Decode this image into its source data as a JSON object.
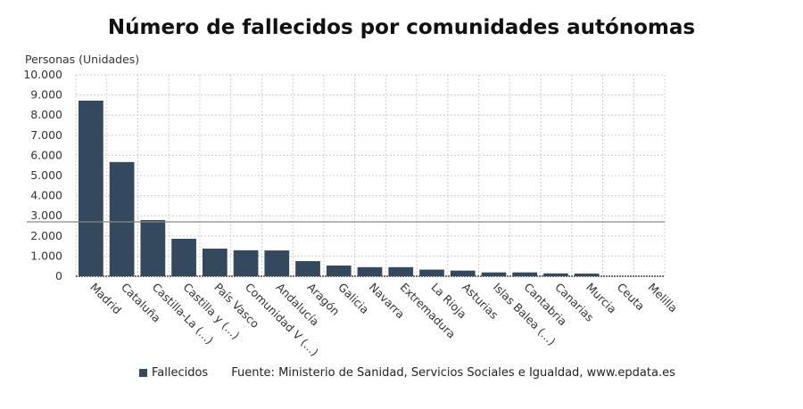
{
  "chart_data": {
    "type": "bar",
    "title": "Número de fallecidos por comunidades autónomas",
    "ylabel": "Personas (Unidades)",
    "xlabel": "",
    "ylim": [
      0,
      10000
    ],
    "yticks": [
      "0",
      "1.000",
      "2.000",
      "3.000",
      "4.000",
      "5.000",
      "6.000",
      "7.000",
      "8.000",
      "9.000",
      "10.000"
    ],
    "grid": true,
    "categories": [
      "Madrid",
      "Cataluña",
      "Castilla-La (...)",
      "Castilla y (...)",
      "País Vasco",
      "Comunidad V (...)",
      "Andalucía",
      "Aragón",
      "Galicia",
      "Navarra",
      "Extremadura",
      "La Rioja",
      "Asturias",
      "Islas Balea (...)",
      "Cantabria",
      "Canarias",
      "Murcia",
      "Ceuta",
      "Melilla"
    ],
    "series": [
      {
        "name": "Fallecidos",
        "color": "#34495e",
        "values": [
          8720,
          5670,
          2790,
          1860,
          1370,
          1290,
          1280,
          750,
          530,
          450,
          450,
          330,
          280,
          190,
          190,
          140,
          130,
          4,
          2
        ]
      }
    ],
    "reference_line": 2700,
    "legend_position": "bottom"
  },
  "source": "Fuente: Ministerio de Sanidad, Servicios Sociales e Igualdad, www.epdata.es"
}
